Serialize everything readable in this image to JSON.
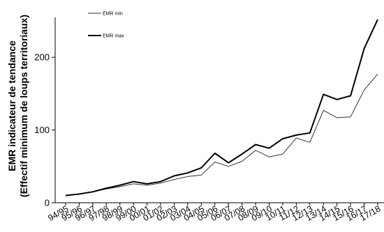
{
  "chart_data": {
    "type": "line",
    "title": "",
    "ylabel": "EMR indicateur de tendance",
    "ylabel_sub": "(Effectif minimum de loups territoriaux)",
    "xlabel": "",
    "ylim": [
      0,
      250
    ],
    "yticks": [
      0,
      100,
      200
    ],
    "grid": false,
    "legend": "top-left",
    "categories": [
      "94/95",
      "95/96",
      "96/97",
      "97/98",
      "98/99",
      "99/00",
      "00/01",
      "01/02",
      "02/03",
      "03/04",
      "04/05",
      "05/06",
      "06/07",
      "07/08",
      "08/09",
      "09/10",
      "10/11",
      "11/12",
      "12/13",
      "13/14",
      "14/15",
      "15/16",
      "16/17",
      "17/18"
    ],
    "series": [
      {
        "name": "EMR min",
        "line_width": 1,
        "color": "#333333",
        "values": [
          10,
          12,
          15,
          19,
          22,
          26,
          24,
          27,
          32,
          36,
          38,
          56,
          50,
          57,
          72,
          63,
          67,
          89,
          83,
          127,
          117,
          118,
          155,
          177
        ]
      },
      {
        "name": "EMR max",
        "line_width": 2,
        "color": "#000000",
        "values": [
          10,
          12,
          15,
          20,
          24,
          29,
          26,
          29,
          37,
          41,
          48,
          68,
          55,
          67,
          80,
          75,
          88,
          93,
          96,
          149,
          142,
          147,
          212,
          252
        ]
      }
    ]
  }
}
